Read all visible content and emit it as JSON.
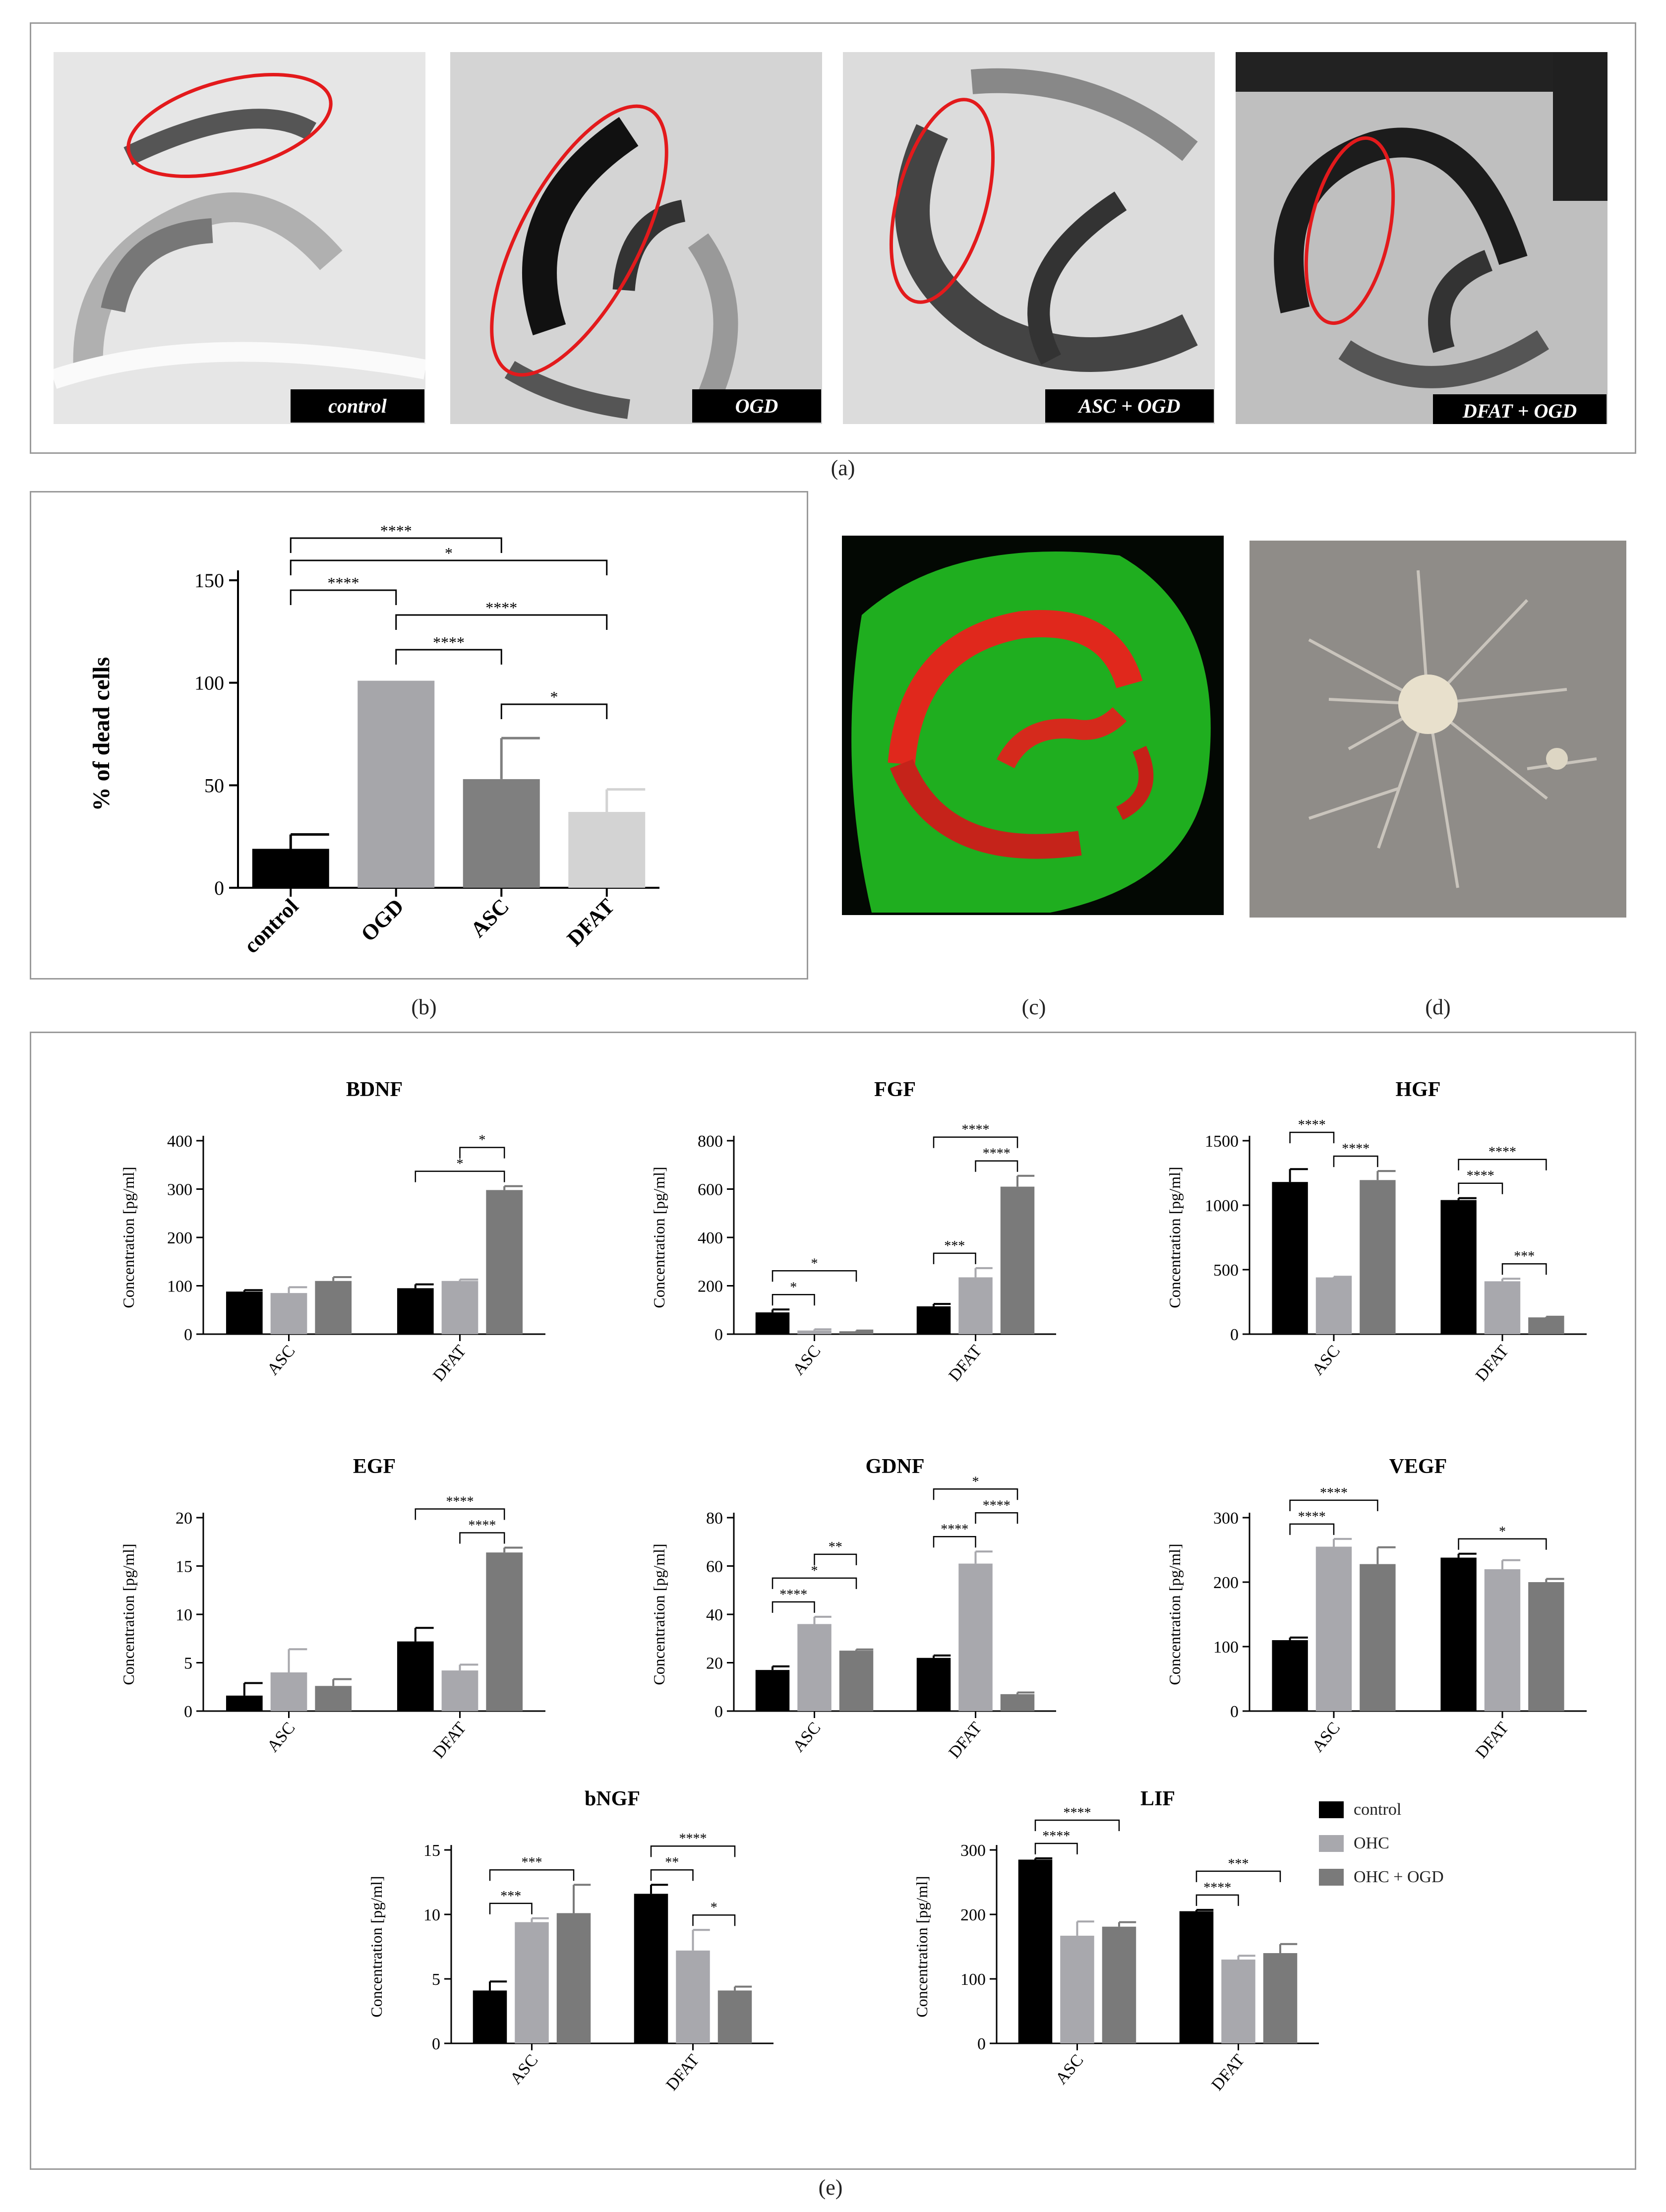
{
  "panel_a": {
    "label": "(a)",
    "images": [
      {
        "tag": "control",
        "tone": "light"
      },
      {
        "tag": "OGD",
        "tone": "mid"
      },
      {
        "tag": "ASC + OGD",
        "tone": "mid"
      },
      {
        "tag": "DFAT + OGD",
        "tone": "dark"
      }
    ]
  },
  "panel_b": {
    "label": "(b)"
  },
  "panel_c": {
    "label": "(c)"
  },
  "panel_d": {
    "label": "(d)"
  },
  "panel_e": {
    "label": "(e)"
  },
  "colors": {
    "control": "#000000",
    "OHC": "#a8a8ad",
    "OHC_OGD": "#7a7a7a",
    "ASC_b": "#7f7f7f",
    "DFAT_b": "#d3d3d3",
    "OGD_b": "#a6a6aa",
    "sig_red": "#e31a1c"
  },
  "legend": [
    {
      "label": "control",
      "color": "#000000"
    },
    {
      "label": "OHC",
      "color": "#a8a8ad"
    },
    {
      "label": "OHC + OGD",
      "color": "#7a7a7a"
    }
  ],
  "chart_data": [
    {
      "id": "dead-cells",
      "type": "bar",
      "title": "",
      "ylabel": "% of dead cells",
      "ylim": [
        0,
        150
      ],
      "yticks": [
        0,
        50,
        100,
        150
      ],
      "categories": [
        "control",
        "OGD",
        "ASC",
        "DFAT"
      ],
      "values": [
        19,
        101,
        53,
        37
      ],
      "errors": [
        7,
        0,
        20,
        11
      ],
      "colors": [
        "#000000",
        "#a6a6aa",
        "#7f7f7f",
        "#d3d3d3"
      ],
      "significance": [
        {
          "from": 0,
          "to": 2,
          "label": "****"
        },
        {
          "from": 0,
          "to": 3,
          "label": "*"
        },
        {
          "from": 0,
          "to": 1,
          "label": "****"
        },
        {
          "from": 1,
          "to": 3,
          "label": "****"
        },
        {
          "from": 1,
          "to": 2,
          "label": "****"
        },
        {
          "from": 2,
          "to": 3,
          "label": "*"
        }
      ]
    },
    {
      "id": "bdnf",
      "type": "bar",
      "title": "BDNF",
      "ylabel": "Concentration [pg/ml]",
      "ylim": [
        0,
        400
      ],
      "yticks": [
        0,
        100,
        200,
        300,
        400
      ],
      "categories": [
        "ASC",
        "DFAT"
      ],
      "series": [
        {
          "name": "control",
          "values": [
            88,
            95
          ],
          "errors": [
            3,
            8
          ]
        },
        {
          "name": "OHC",
          "values": [
            85,
            110
          ],
          "errors": [
            12,
            3
          ]
        },
        {
          "name": "OHC + OGD",
          "values": [
            110,
            298
          ],
          "errors": [
            8,
            8
          ]
        }
      ],
      "significance": [
        {
          "group": 1,
          "from": 1,
          "to": 2,
          "label": "*"
        },
        {
          "group": 1,
          "from": 0,
          "to": 2,
          "label": "*"
        }
      ]
    },
    {
      "id": "fgf",
      "type": "bar",
      "title": "FGF",
      "ylabel": "Concentration [pg/ml]",
      "ylim": [
        0,
        800
      ],
      "yticks": [
        0,
        200,
        400,
        600,
        800
      ],
      "categories": [
        "ASC",
        "DFAT"
      ],
      "series": [
        {
          "name": "control",
          "values": [
            90,
            115
          ],
          "errors": [
            12,
            10
          ]
        },
        {
          "name": "OHC",
          "values": [
            15,
            235
          ],
          "errors": [
            5,
            38
          ]
        },
        {
          "name": "OHC + OGD",
          "values": [
            12,
            610
          ],
          "errors": [
            3,
            45
          ]
        }
      ],
      "significance": [
        {
          "group": 0,
          "from": 0,
          "to": 2,
          "label": "*"
        },
        {
          "group": 0,
          "from": 0,
          "to": 1,
          "label": "*"
        },
        {
          "group": 1,
          "from": 0,
          "to": 2,
          "label": "****"
        },
        {
          "group": 1,
          "from": 1,
          "to": 2,
          "label": "****"
        },
        {
          "group": 1,
          "from": 0,
          "to": 1,
          "label": "***"
        }
      ]
    },
    {
      "id": "hgf",
      "type": "bar",
      "title": "HGF",
      "ylabel": "Concentration [pg/ml]",
      "ylim": [
        0,
        1500
      ],
      "yticks": [
        0,
        500,
        1000,
        1500
      ],
      "categories": [
        "ASC",
        "DFAT"
      ],
      "series": [
        {
          "name": "control",
          "values": [
            1180,
            1040
          ],
          "errors": [
            100,
            15
          ]
        },
        {
          "name": "OHC",
          "values": [
            440,
            410
          ],
          "errors": [
            5,
            20
          ]
        },
        {
          "name": "OHC + OGD",
          "values": [
            1195,
            130
          ],
          "errors": [
            70,
            5
          ]
        }
      ],
      "significance": [
        {
          "group": 0,
          "from": 0,
          "to": 1,
          "label": "****"
        },
        {
          "group": 0,
          "from": 1,
          "to": 2,
          "label": "****"
        },
        {
          "group": 1,
          "from": 0,
          "to": 2,
          "label": "****"
        },
        {
          "group": 1,
          "from": 0,
          "to": 1,
          "label": "****"
        },
        {
          "group": 1,
          "from": 1,
          "to": 2,
          "label": "***"
        }
      ]
    },
    {
      "id": "egf",
      "type": "bar",
      "title": "EGF",
      "ylabel": "Concentration [pg/ml]",
      "ylim": [
        0,
        20
      ],
      "yticks": [
        0,
        5,
        10,
        15,
        20
      ],
      "categories": [
        "ASC",
        "DFAT"
      ],
      "series": [
        {
          "name": "control",
          "values": [
            1.6,
            7.2
          ],
          "errors": [
            1.3,
            1.4
          ]
        },
        {
          "name": "OHC",
          "values": [
            4.0,
            4.2
          ],
          "errors": [
            2.4,
            0.6
          ]
        },
        {
          "name": "OHC + OGD",
          "values": [
            2.6,
            16.4
          ],
          "errors": [
            0.7,
            0.5
          ]
        }
      ],
      "significance": [
        {
          "group": 1,
          "from": 0,
          "to": 2,
          "label": "****"
        },
        {
          "group": 1,
          "from": 1,
          "to": 2,
          "label": "****"
        }
      ]
    },
    {
      "id": "gdnf",
      "type": "bar",
      "title": "GDNF",
      "ylabel": "Concentration [pg/ml]",
      "ylim": [
        0,
        80
      ],
      "yticks": [
        0,
        20,
        40,
        60,
        80
      ],
      "categories": [
        "ASC",
        "DFAT"
      ],
      "series": [
        {
          "name": "control",
          "values": [
            17,
            22
          ],
          "errors": [
            1.5,
            1
          ]
        },
        {
          "name": "OHC",
          "values": [
            36,
            61
          ],
          "errors": [
            3,
            5
          ]
        },
        {
          "name": "OHC + OGD",
          "values": [
            25,
            7
          ],
          "errors": [
            0.5,
            0.7
          ]
        }
      ],
      "significance": [
        {
          "group": 0,
          "from": 1,
          "to": 2,
          "label": "**"
        },
        {
          "group": 0,
          "from": 0,
          "to": 2,
          "label": "*"
        },
        {
          "group": 0,
          "from": 0,
          "to": 1,
          "label": "****"
        },
        {
          "group": 1,
          "from": 0,
          "to": 2,
          "label": "*"
        },
        {
          "group": 1,
          "from": 1,
          "to": 2,
          "label": "****"
        },
        {
          "group": 1,
          "from": 0,
          "to": 1,
          "label": "****"
        }
      ]
    },
    {
      "id": "vegf",
      "type": "bar",
      "title": "VEGF",
      "ylabel": "Concentration [pg/ml]",
      "ylim": [
        0,
        300
      ],
      "yticks": [
        0,
        100,
        200,
        300
      ],
      "categories": [
        "ASC",
        "DFAT"
      ],
      "series": [
        {
          "name": "control",
          "values": [
            110,
            238
          ],
          "errors": [
            4,
            6
          ]
        },
        {
          "name": "OHC",
          "values": [
            255,
            220
          ],
          "errors": [
            12,
            14
          ]
        },
        {
          "name": "OHC + OGD",
          "values": [
            228,
            200
          ],
          "errors": [
            26,
            5
          ]
        }
      ],
      "significance": [
        {
          "group": 0,
          "from": 0,
          "to": 2,
          "label": "****"
        },
        {
          "group": 0,
          "from": 0,
          "to": 1,
          "label": "****"
        },
        {
          "group": 1,
          "from": 0,
          "to": 2,
          "label": "*"
        }
      ]
    },
    {
      "id": "bngf",
      "type": "bar",
      "title": "bNGF",
      "ylabel": "Concentration [pg/ml]",
      "ylim": [
        0,
        15
      ],
      "yticks": [
        0,
        5,
        10,
        15
      ],
      "categories": [
        "ASC",
        "DFAT"
      ],
      "series": [
        {
          "name": "control",
          "values": [
            4.1,
            11.6
          ],
          "errors": [
            0.7,
            0.7
          ]
        },
        {
          "name": "OHC",
          "values": [
            9.4,
            7.2
          ],
          "errors": [
            0.3,
            1.6
          ]
        },
        {
          "name": "OHC + OGD",
          "values": [
            10.1,
            4.1
          ],
          "errors": [
            2.2,
            0.3
          ]
        }
      ],
      "significance": [
        {
          "group": 0,
          "from": 0,
          "to": 2,
          "label": "***"
        },
        {
          "group": 0,
          "from": 0,
          "to": 1,
          "label": "***"
        },
        {
          "group": 1,
          "from": 0,
          "to": 2,
          "label": "****"
        },
        {
          "group": 1,
          "from": 0,
          "to": 1,
          "label": "**"
        },
        {
          "group": 1,
          "from": 1,
          "to": 2,
          "label": "*"
        }
      ]
    },
    {
      "id": "lif",
      "type": "bar",
      "title": "LIF",
      "ylabel": "Concentration [pg/ml]",
      "ylim": [
        0,
        300
      ],
      "yticks": [
        0,
        100,
        200,
        300
      ],
      "categories": [
        "ASC",
        "DFAT"
      ],
      "series": [
        {
          "name": "control",
          "values": [
            285,
            205
          ],
          "errors": [
            2,
            2
          ]
        },
        {
          "name": "OHC",
          "values": [
            167,
            130
          ],
          "errors": [
            22,
            6
          ]
        },
        {
          "name": "OHC + OGD",
          "values": [
            181,
            140
          ],
          "errors": [
            7,
            14
          ]
        }
      ],
      "significance": [
        {
          "group": 0,
          "from": 0,
          "to": 2,
          "label": "****"
        },
        {
          "group": 0,
          "from": 0,
          "to": 1,
          "label": "****"
        },
        {
          "group": 1,
          "from": 0,
          "to": 2,
          "label": "***"
        },
        {
          "group": 1,
          "from": 0,
          "to": 1,
          "label": "****"
        }
      ]
    }
  ]
}
